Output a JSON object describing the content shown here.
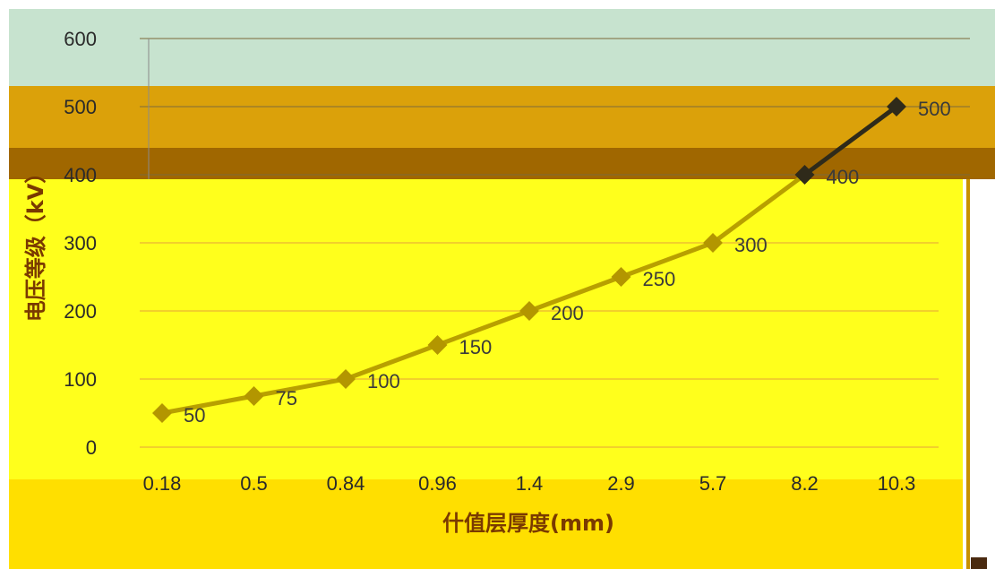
{
  "chart_data": {
    "type": "line",
    "xlabel": "什值层厚度(mm)",
    "ylabel": "电压等级（kV）",
    "categories": [
      "0.18",
      "0.5",
      "0.84",
      "0.96",
      "1.4",
      "2.9",
      "5.7",
      "8.2",
      "10.3"
    ],
    "series": [
      {
        "values": [
          50,
          75,
          100,
          150,
          200,
          250,
          300,
          400,
          500
        ]
      }
    ],
    "data_labels": [
      "50",
      "75",
      "100",
      "150",
      "200",
      "250",
      "300",
      "400",
      "500"
    ],
    "yticks": [
      0,
      100,
      200,
      300,
      400,
      500,
      600
    ],
    "ylim": [
      0,
      600
    ],
    "grid": true,
    "marker": "diamond",
    "colors": {
      "line": "#b8a000",
      "marker": "#b39600",
      "highlight_marker": "#2f2a1a",
      "grid": "#e5a23a",
      "band_top": "#c7e3cf",
      "band_orange": "#dba10a",
      "band_dark": "#a06700",
      "plot_fill": "#ffff1c",
      "bottom_fill": "#ffdf00"
    }
  }
}
